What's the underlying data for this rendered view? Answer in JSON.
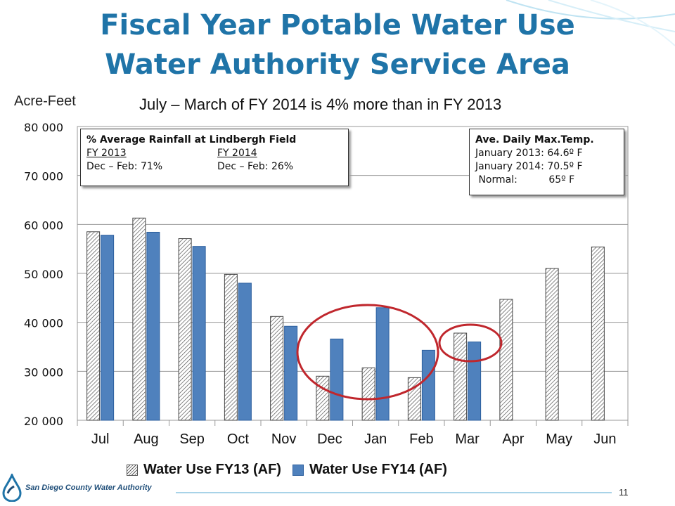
{
  "title_line1": "Fiscal Year Potable Water Use",
  "title_line2": "Water Authority Service Area",
  "y_unit_label": "Acre-Feet",
  "subtitle": "July – March of FY 2014 is 4% more than in FY 2013",
  "rainfall_box": {
    "heading": "% Average Rainfall at Lindbergh Field",
    "col1_label": "FY 2013",
    "col1_value": "Dec – Feb: 71%",
    "col2_label": "FY 2014",
    "col2_value": "Dec – Feb: 26%"
  },
  "temp_box": {
    "heading": "Ave. Daily Max.Temp.",
    "line1": "January 2013: 64.6º F",
    "line2": "January 2014: 70.5º F",
    "line3": " Normal:          65º F"
  },
  "page_number": "11",
  "logo_text": "San Diego County Water Authority",
  "colors": {
    "title": "#1f74a8",
    "fy14_bar": "#4f81bd",
    "circle": "#c0272d"
  },
  "chart_data": {
    "type": "bar",
    "categories": [
      "Jul",
      "Aug",
      "Sep",
      "Oct",
      "Nov",
      "Dec",
      "Jan",
      "Feb",
      "Mar",
      "Apr",
      "May",
      "Jun"
    ],
    "series": [
      {
        "name": "Water Use FY13 (AF)",
        "values": [
          58500,
          61300,
          57100,
          49800,
          41200,
          29000,
          30700,
          28700,
          37800,
          44700,
          51000,
          55400
        ]
      },
      {
        "name": "Water Use FY14 (AF)",
        "values": [
          57800,
          58400,
          55500,
          48000,
          39200,
          36600,
          43000,
          34300,
          36000,
          null,
          null,
          null
        ]
      }
    ],
    "ylim": [
      20000,
      80000
    ],
    "yticks": [
      20000,
      30000,
      40000,
      50000,
      60000,
      70000,
      80000
    ],
    "ytick_labels": [
      "20 000",
      "30 000",
      "40 000",
      "50 000",
      "60 000",
      "70 000",
      "80 000"
    ],
    "grid": true,
    "legend_position": "bottom"
  }
}
